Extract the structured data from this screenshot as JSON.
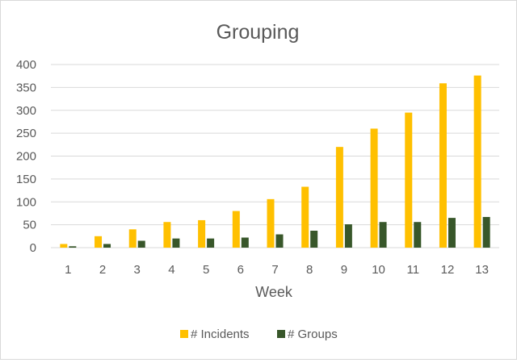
{
  "chart_data": {
    "type": "bar",
    "title": "Grouping",
    "xlabel": "Week",
    "ylabel": "",
    "ylim": [
      0,
      400
    ],
    "yticks": [
      0,
      50,
      100,
      150,
      200,
      250,
      300,
      350,
      400
    ],
    "categories": [
      "1",
      "2",
      "3",
      "4",
      "5",
      "6",
      "7",
      "8",
      "9",
      "10",
      "11",
      "12",
      "13"
    ],
    "series": [
      {
        "name": "# Incidents",
        "color": "#ffc000",
        "values": [
          8,
          25,
          40,
          56,
          60,
          80,
          106,
          133,
          220,
          260,
          295,
          359,
          376
        ]
      },
      {
        "name": "# Groups",
        "color": "#38572a",
        "values": [
          3,
          8,
          15,
          20,
          20,
          22,
          29,
          37,
          51,
          56,
          56,
          65,
          67
        ]
      }
    ],
    "grid": true,
    "legend_position": "bottom"
  },
  "colors": {
    "gridline": "#d9d9d9",
    "axis_text": "#595959",
    "title_text": "#595959"
  }
}
